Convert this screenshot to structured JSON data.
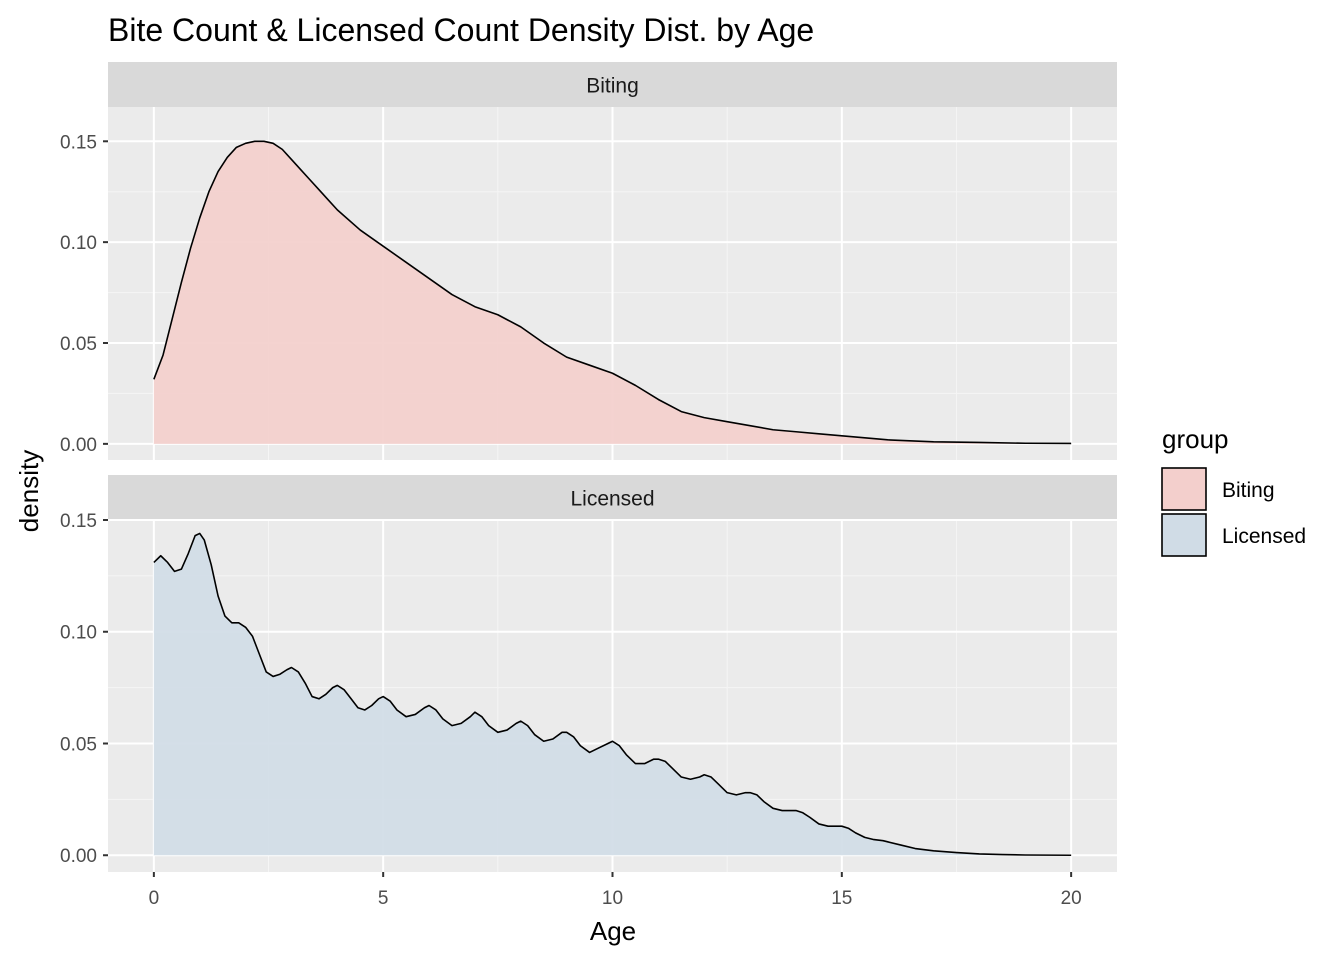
{
  "chart_data": {
    "type": "area",
    "title": "Bite Count & Licensed Count Density Dist. by Age",
    "xlabel": "Age",
    "ylabel": "density",
    "xlim": [
      -1,
      21
    ],
    "x_ticks": [
      0,
      5,
      10,
      15,
      20
    ],
    "x_tick_labels": [
      "0",
      "5",
      "10",
      "15",
      "20"
    ],
    "y_ticks": [
      0,
      0.05,
      0.1,
      0.15
    ],
    "y_tick_labels": [
      "0.00",
      "0.05",
      "0.10",
      "0.15"
    ],
    "grid": true,
    "legend": {
      "title": "group",
      "position": "right",
      "entries": [
        "Biting",
        "Licensed"
      ]
    },
    "colors": {
      "Biting": "#f3cfcc",
      "Licensed": "#d0dce6",
      "panel": "#ebebeb",
      "strip": "#d9d9d9",
      "line": "#000000"
    },
    "facets": [
      {
        "strip_label": "Biting",
        "series_name": "Biting",
        "ylim": [
          -0.008,
          0.167
        ],
        "x": [
          0,
          0.2,
          0.4,
          0.6,
          0.8,
          1.0,
          1.2,
          1.4,
          1.6,
          1.8,
          2.0,
          2.2,
          2.4,
          2.6,
          2.8,
          3.0,
          3.2,
          3.4,
          3.6,
          3.8,
          4.0,
          4.5,
          5.0,
          5.5,
          6.0,
          6.5,
          7.0,
          7.5,
          8.0,
          8.5,
          9.0,
          9.5,
          10.0,
          10.5,
          11.0,
          11.5,
          12.0,
          12.5,
          13.0,
          13.5,
          14.0,
          14.5,
          15.0,
          16.0,
          17.0,
          18.0,
          19.0,
          20.0
        ],
        "y": [
          0.032,
          0.044,
          0.062,
          0.08,
          0.097,
          0.112,
          0.125,
          0.135,
          0.142,
          0.147,
          0.149,
          0.15,
          0.15,
          0.149,
          0.146,
          0.141,
          0.136,
          0.131,
          0.126,
          0.121,
          0.116,
          0.106,
          0.098,
          0.09,
          0.082,
          0.074,
          0.068,
          0.064,
          0.058,
          0.05,
          0.043,
          0.039,
          0.035,
          0.029,
          0.022,
          0.016,
          0.013,
          0.011,
          0.009,
          0.007,
          0.006,
          0.005,
          0.004,
          0.002,
          0.001,
          0.0007,
          0.0003,
          0.0002
        ]
      },
      {
        "strip_label": "Licensed",
        "series_name": "Licensed",
        "ylim": [
          -0.0075,
          0.15
        ],
        "x": [
          0,
          0.15,
          0.3,
          0.45,
          0.6,
          0.75,
          0.9,
          1.0,
          1.1,
          1.25,
          1.4,
          1.55,
          1.7,
          1.85,
          2.0,
          2.15,
          2.3,
          2.45,
          2.6,
          2.75,
          2.9,
          3.0,
          3.15,
          3.3,
          3.45,
          3.6,
          3.75,
          3.9,
          4.0,
          4.15,
          4.3,
          4.45,
          4.6,
          4.75,
          4.9,
          5.0,
          5.15,
          5.3,
          5.5,
          5.7,
          5.9,
          6.0,
          6.15,
          6.3,
          6.5,
          6.7,
          6.9,
          7.0,
          7.15,
          7.3,
          7.5,
          7.7,
          7.9,
          8.0,
          8.15,
          8.3,
          8.5,
          8.7,
          8.9,
          9.0,
          9.15,
          9.3,
          9.5,
          9.7,
          9.9,
          10.0,
          10.15,
          10.3,
          10.5,
          10.7,
          10.9,
          11.0,
          11.15,
          11.3,
          11.5,
          11.7,
          11.9,
          12.0,
          12.15,
          12.3,
          12.5,
          12.7,
          12.9,
          13.0,
          13.15,
          13.3,
          13.5,
          13.7,
          13.9,
          14.0,
          14.15,
          14.3,
          14.5,
          14.7,
          14.9,
          15.0,
          15.15,
          15.3,
          15.5,
          15.7,
          15.9,
          16.0,
          16.3,
          16.6,
          17.0,
          17.5,
          18.0,
          18.5,
          19.0,
          19.5,
          20.0
        ],
        "y": [
          0.131,
          0.134,
          0.131,
          0.127,
          0.128,
          0.135,
          0.143,
          0.144,
          0.141,
          0.13,
          0.116,
          0.107,
          0.104,
          0.104,
          0.102,
          0.098,
          0.09,
          0.082,
          0.08,
          0.081,
          0.083,
          0.084,
          0.082,
          0.077,
          0.071,
          0.07,
          0.072,
          0.075,
          0.076,
          0.074,
          0.07,
          0.066,
          0.065,
          0.067,
          0.07,
          0.071,
          0.069,
          0.065,
          0.062,
          0.063,
          0.066,
          0.067,
          0.065,
          0.061,
          0.058,
          0.059,
          0.062,
          0.064,
          0.062,
          0.058,
          0.055,
          0.056,
          0.059,
          0.06,
          0.058,
          0.054,
          0.051,
          0.052,
          0.055,
          0.055,
          0.053,
          0.049,
          0.046,
          0.048,
          0.05,
          0.051,
          0.049,
          0.045,
          0.041,
          0.041,
          0.043,
          0.043,
          0.042,
          0.039,
          0.035,
          0.034,
          0.035,
          0.036,
          0.035,
          0.032,
          0.028,
          0.027,
          0.028,
          0.028,
          0.027,
          0.024,
          0.021,
          0.02,
          0.02,
          0.02,
          0.019,
          0.017,
          0.014,
          0.013,
          0.013,
          0.013,
          0.012,
          0.01,
          0.008,
          0.007,
          0.0065,
          0.006,
          0.0045,
          0.003,
          0.002,
          0.0012,
          0.0006,
          0.0003,
          0.0001,
          5e-05,
          0.0
        ]
      }
    ]
  }
}
